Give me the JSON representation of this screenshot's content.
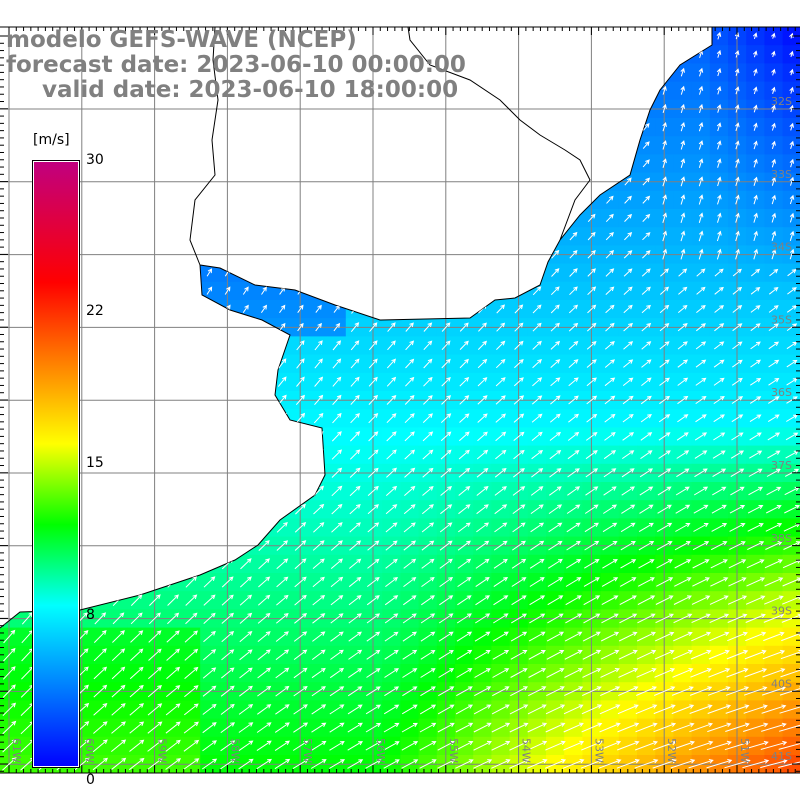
{
  "title": {
    "model": "modelo GEFS-WAVE (NCEP)",
    "forecast": "forecast date: 2023-06-10 00:00:00",
    "valid": "valid date: 2023-06-10 18:00:00"
  },
  "colorbar": {
    "units": "[m/s]",
    "ticks": [
      "30",
      "22",
      "15",
      "8",
      "0"
    ],
    "tick_values": [
      30,
      22,
      15,
      8,
      0
    ],
    "stops": [
      {
        "v": 0,
        "c": "#0000ff"
      },
      {
        "v": 8,
        "c": "#00ffff"
      },
      {
        "v": 12,
        "c": "#00ff00"
      },
      {
        "v": 16,
        "c": "#ffff00"
      },
      {
        "v": 20,
        "c": "#ff8000"
      },
      {
        "v": 24,
        "c": "#ff0000"
      },
      {
        "v": 30,
        "c": "#c00080"
      }
    ]
  },
  "map": {
    "lon_labels": [
      "61W",
      "60W",
      "59W",
      "58W",
      "57W",
      "56W",
      "55W",
      "54W",
      "53W",
      "52W",
      "51W"
    ],
    "lat_labels": [
      "32S",
      "33S",
      "34S",
      "35S",
      "36S",
      "37S",
      "38S",
      "39S",
      "40S",
      "41S"
    ],
    "grid_color": "#808080",
    "label_color": "#808080"
  }
}
